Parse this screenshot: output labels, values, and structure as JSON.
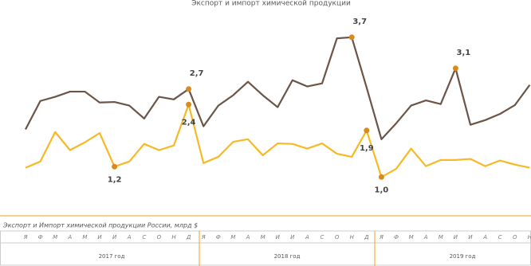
{
  "chart_data": {
    "type": "line",
    "title": "Экспорт и импорт химической продукции",
    "caption": "Экспорт и Импорт химической продукции России, млрд $",
    "categories": [
      "Я",
      "Ф",
      "М",
      "А",
      "М",
      "И",
      "И",
      "А",
      "С",
      "О",
      "Н",
      "Д",
      "Я",
      "Ф",
      "М",
      "А",
      "М",
      "И",
      "И",
      "А",
      "С",
      "О",
      "Н",
      "Д",
      "Я",
      "Ф",
      "М",
      "А",
      "М",
      "И",
      "И",
      "А",
      "С",
      "О",
      "Н"
    ],
    "periods": [
      "2017 год",
      "2018 год",
      "2019 год"
    ],
    "ylim": [
      0.42,
      4.42
    ],
    "series": [
      {
        "name": "Экспорт",
        "color": "#6b5548",
        "values": [
          1.92,
          2.47,
          2.55,
          2.65,
          2.65,
          2.44,
          2.45,
          2.38,
          2.13,
          2.55,
          2.5,
          2.7,
          1.98,
          2.38,
          2.58,
          2.84,
          2.58,
          2.35,
          2.87,
          2.75,
          2.81,
          3.68,
          3.7,
          2.73,
          1.73,
          2.04,
          2.38,
          2.48,
          2.41,
          3.1,
          2.01,
          2.1,
          2.22,
          2.39,
          2.78
        ],
        "value_labels": [
          null,
          null,
          null,
          null,
          null,
          null,
          null,
          null,
          null,
          null,
          null,
          "2,7",
          null,
          null,
          null,
          null,
          null,
          null,
          null,
          null,
          null,
          null,
          "3,7",
          null,
          null,
          null,
          null,
          null,
          null,
          "3,1",
          null,
          null,
          null,
          null,
          null
        ]
      },
      {
        "name": "Импорт",
        "color": "#f7b924",
        "values": [
          1.18,
          1.3,
          1.87,
          1.52,
          1.67,
          1.85,
          1.2,
          1.3,
          1.64,
          1.52,
          1.61,
          2.4,
          1.27,
          1.39,
          1.68,
          1.73,
          1.42,
          1.65,
          1.64,
          1.55,
          1.65,
          1.45,
          1.39,
          1.9,
          1.0,
          1.16,
          1.55,
          1.21,
          1.33,
          1.33,
          1.35,
          1.21,
          1.32,
          1.24,
          1.18
        ],
        "value_labels": [
          null,
          null,
          null,
          null,
          null,
          null,
          "1,2",
          null,
          null,
          null,
          null,
          "2,4",
          null,
          null,
          null,
          null,
          null,
          null,
          null,
          null,
          null,
          null,
          null,
          "1,9",
          "1,0",
          null,
          null,
          null,
          null,
          null,
          null,
          null,
          null,
          null,
          null
        ]
      }
    ],
    "marker_color": "#d98a1a"
  }
}
